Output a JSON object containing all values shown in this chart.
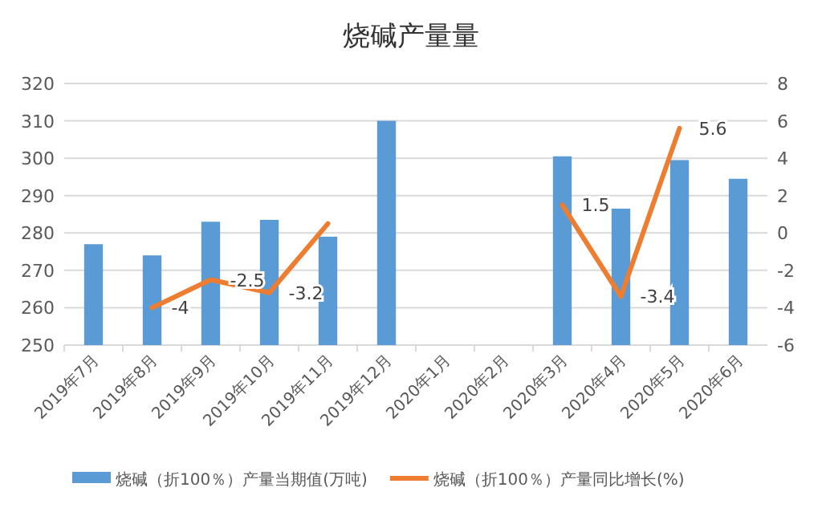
{
  "chart_data": {
    "type": "bar",
    "title": "烧碱产量量",
    "categories": [
      "2019年7月",
      "2019年8月",
      "2019年9月",
      "2019年10月",
      "2019年11月",
      "2019年12月",
      "2020年1月",
      "2020年2月",
      "2020年3月",
      "2020年4月",
      "2020年5月",
      "2020年6月"
    ],
    "series": [
      {
        "name": "烧碱（折100％）产量当期值(万吨)",
        "color": "#5b9bd5",
        "values": [
          277,
          274,
          283,
          283.5,
          279,
          310,
          null,
          null,
          300.5,
          286.5,
          299.5,
          294.5
        ]
      },
      {
        "name": "烧碱（折100％）产量同比增长(%)",
        "type": "line",
        "axis": "y2",
        "color": "#ed7d31",
        "values": [
          null,
          -4,
          -2.5,
          -3.2,
          0.5,
          null,
          null,
          null,
          1.5,
          -3.4,
          5.6,
          null
        ],
        "value_labels": [
          null,
          "-4",
          "-2.5",
          "-3.2",
          null,
          null,
          null,
          null,
          "1.5",
          "-3.4",
          "5.6",
          null
        ]
      }
    ],
    "ylim": [
      250,
      320
    ],
    "yticks": [
      250,
      260,
      270,
      280,
      290,
      300,
      310,
      320
    ],
    "y2lim": [
      -6,
      8
    ],
    "y2ticks": [
      -6,
      -4,
      -2,
      0,
      2,
      4,
      6,
      8
    ],
    "grid": "y",
    "legend": "bottom"
  }
}
